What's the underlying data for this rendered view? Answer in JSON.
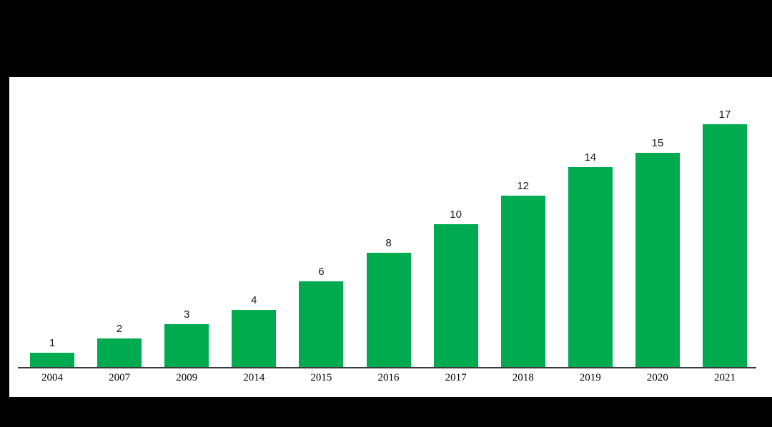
{
  "chart_data": {
    "type": "bar",
    "categories": [
      "2004",
      "2007",
      "2009",
      "2014",
      "2015",
      "2016",
      "2017",
      "2018",
      "2019",
      "2020",
      "2021"
    ],
    "values": [
      1,
      2,
      3,
      4,
      6,
      8,
      10,
      12,
      14,
      15,
      17
    ],
    "title": "",
    "xlabel": "",
    "ylabel": "",
    "ylim": [
      0,
      17
    ],
    "grid": false,
    "legend": false,
    "y_axis_visible": false,
    "data_labels": true,
    "colors": {
      "bar": "#00AB50",
      "axis_line": "#3a3a3a",
      "value_label": "#1a1a1a",
      "tick_label": "#000000",
      "panel_background": "#ffffff",
      "page_background": "#000000"
    }
  }
}
